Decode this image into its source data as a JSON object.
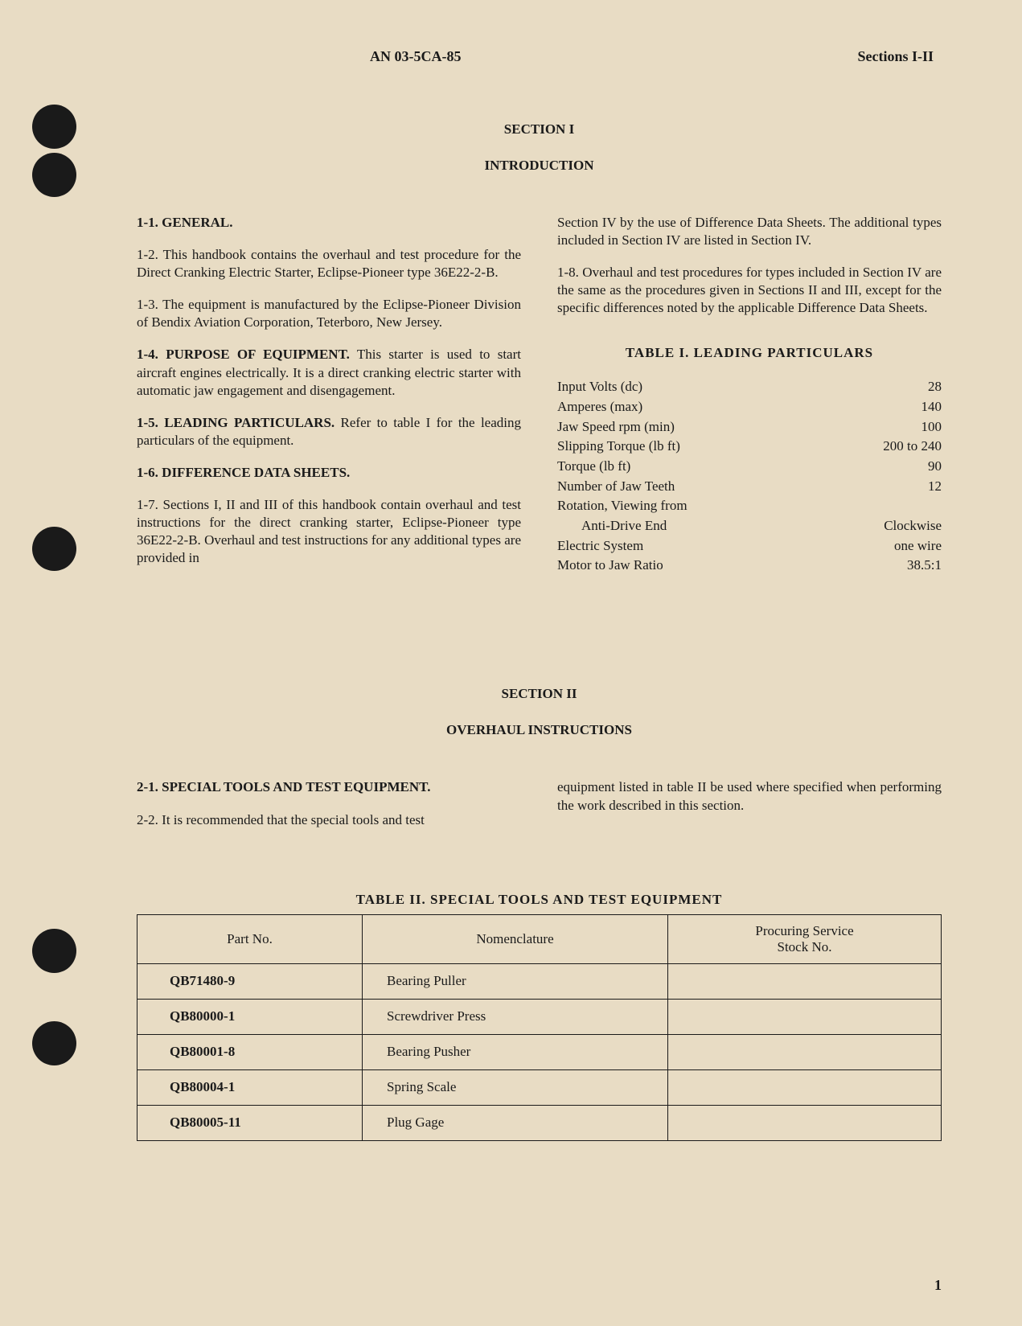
{
  "header": {
    "doc_number": "AN 03-5CA-85",
    "sections": "Sections I-II"
  },
  "section1": {
    "title": "SECTION I",
    "subtitle": "INTRODUCTION",
    "left_col": {
      "p1_heading": "1-1. GENERAL.",
      "p2": "1-2. This handbook contains the overhaul and test procedure for the Direct Cranking Electric Starter, Eclipse-Pioneer type 36E22-2-B.",
      "p3": "1-3. The equipment is manufactured by the Eclipse-Pioneer Division of Bendix Aviation Corporation, Teterboro, New Jersey.",
      "p4_heading": "1-4. PURPOSE OF EQUIPMENT.",
      "p4_text": " This starter is used to start aircraft engines electrically. It is a direct cranking electric starter with automatic jaw engagement and disengagement.",
      "p5_heading": "1-5. LEADING PARTICULARS.",
      "p5_text": " Refer to table I for the leading particulars of the equipment.",
      "p6_heading": "1-6. DIFFERENCE DATA SHEETS.",
      "p7": "1-7. Sections I, II and III of this handbook contain overhaul and test instructions for the direct cranking starter, Eclipse-Pioneer type 36E22-2-B. Overhaul and test instructions for any additional types are provided in"
    },
    "right_col": {
      "p7_cont": "Section IV by the use of Difference Data Sheets. The additional types included in Section IV are listed in Section IV.",
      "p8": "1-8. Overhaul and test procedures for types included in Section IV are the same as the procedures given in Sections II and III, except for the specific differences noted by the applicable Difference Data Sheets."
    },
    "table1": {
      "title": "TABLE I.   LEADING PARTICULARS",
      "rows": [
        {
          "label": "Input Volts (dc)",
          "value": "28"
        },
        {
          "label": "Amperes (max)",
          "value": "140"
        },
        {
          "label": "Jaw Speed rpm (min)",
          "value": "100"
        },
        {
          "label": "Slipping Torque (lb ft)",
          "value": "200 to 240"
        },
        {
          "label": "Torque (lb ft)",
          "value": "90"
        },
        {
          "label": "Number of Jaw Teeth",
          "value": "12"
        },
        {
          "label": "Rotation, Viewing from",
          "value": ""
        },
        {
          "label": "Anti-Drive End",
          "value": "Clockwise",
          "indent": true
        },
        {
          "label": "Electric System",
          "value": "one wire"
        },
        {
          "label": "Motor to Jaw Ratio",
          "value": "38.5:1"
        }
      ]
    }
  },
  "section2": {
    "title": "SECTION II",
    "subtitle": "OVERHAUL INSTRUCTIONS",
    "left_col": {
      "p1_heading": "2-1. SPECIAL TOOLS AND TEST EQUIPMENT.",
      "p2": "2-2. It is recommended that the special tools and test"
    },
    "right_col": {
      "p2_cont": "equipment listed in table II be used where specified when performing the work described in this section."
    },
    "table2": {
      "title": "TABLE II. SPECIAL TOOLS AND TEST EQUIPMENT",
      "headers": [
        "Part No.",
        "Nomenclature",
        "Procuring Service Stock No."
      ],
      "rows": [
        {
          "part": "QB71480-9",
          "nomenclature": "Bearing Puller",
          "stock": ""
        },
        {
          "part": "QB80000-1",
          "nomenclature": "Screwdriver Press",
          "stock": ""
        },
        {
          "part": "QB80001-8",
          "nomenclature": "Bearing Pusher",
          "stock": ""
        },
        {
          "part": "QB80004-1",
          "nomenclature": "Spring Scale",
          "stock": ""
        },
        {
          "part": "QB80005-11",
          "nomenclature": "Plug Gage",
          "stock": ""
        }
      ]
    }
  },
  "page_number": "1"
}
